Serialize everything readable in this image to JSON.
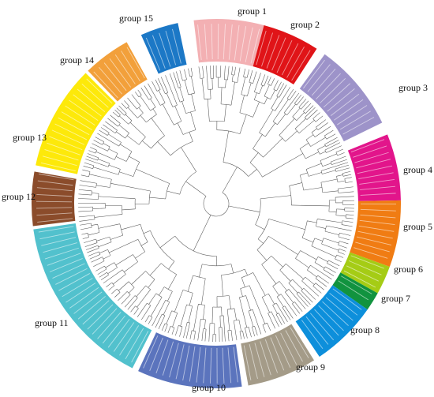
{
  "figure": {
    "groups": [
      {
        "id": "group-1",
        "label": "group 1",
        "color": "#f3b0b3",
        "a0": -7,
        "a1": 15
      },
      {
        "id": "group-2",
        "label": "group 2",
        "color": "#e01418",
        "a0": 15,
        "a1": 33
      },
      {
        "id": "group-3",
        "label": "group 3",
        "color": "#9d93c9",
        "a0": 36,
        "a1": 64
      },
      {
        "id": "group-4",
        "label": "group 4",
        "color": "#e2158b",
        "a0": 68,
        "a1": 89
      },
      {
        "id": "group-5",
        "label": "group 5",
        "color": "#f07c13",
        "a0": 89,
        "a1": 110
      },
      {
        "id": "group-6",
        "label": "group 6",
        "color": "#a5cc15",
        "a0": 110,
        "a1": 119
      },
      {
        "id": "group-7",
        "label": "group 7",
        "color": "#11933f",
        "a0": 119,
        "a1": 125
      },
      {
        "id": "group-8",
        "label": "group 8",
        "color": "#0d8fdb",
        "a0": 125,
        "a1": 146
      },
      {
        "id": "group-9",
        "label": "group 9",
        "color": "#a49b88",
        "a0": 148,
        "a1": 170
      },
      {
        "id": "group-10",
        "label": "group 10",
        "color": "#5b74bd",
        "a0": 172,
        "a1": 205
      },
      {
        "id": "group-11",
        "label": "group 11",
        "color": "#52c1cd",
        "a0": 207,
        "a1": 262
      },
      {
        "id": "group-12",
        "label": "group 12",
        "color": "#8b4c2b",
        "a0": 263,
        "a1": 280
      },
      {
        "id": "group-13",
        "label": "group 13",
        "color": "#fde90a",
        "a0": 282,
        "a1": 315
      },
      {
        "id": "group-14",
        "label": "group 14",
        "color": "#f2a03b",
        "a0": 316,
        "a1": 331
      },
      {
        "id": "group-15",
        "label": "group 15",
        "color": "#1c78c6",
        "a0": 336,
        "a1": 348
      }
    ]
  }
}
